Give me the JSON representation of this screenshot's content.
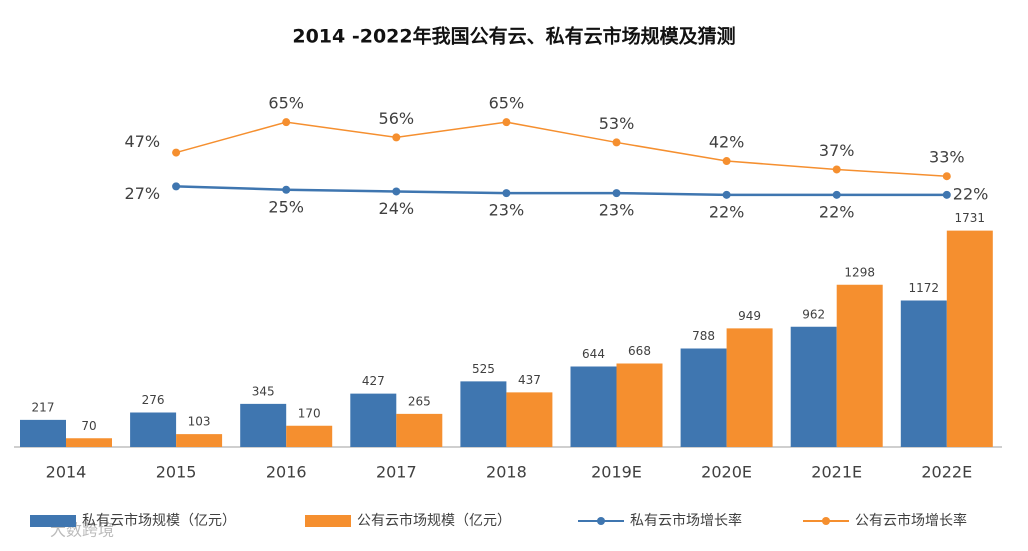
{
  "chart_data": {
    "type": "bar-line",
    "title": "2014 -2022年我国公有云、私有云市场规模及猜测",
    "categories": [
      "2014",
      "2015",
      "2016",
      "2017",
      "2018",
      "2019E",
      "2020E",
      "2021E",
      "2022E"
    ],
    "series": [
      {
        "name": "私有云市场规模（亿元）",
        "type": "bar",
        "color": "#3f76b0",
        "values": [
          217,
          276,
          345,
          427,
          525,
          644,
          788,
          962,
          1172
        ]
      },
      {
        "name": "公有云市场规模（亿元）",
        "type": "bar",
        "color": "#f58f2f",
        "values": [
          70,
          103,
          170,
          265,
          437,
          668,
          949,
          1298,
          1731
        ]
      },
      {
        "name": "私有云市场增长率",
        "type": "line",
        "axis": "y2",
        "color": "#3f76b0",
        "values": [
          null,
          27,
          25,
          24,
          23,
          23,
          22,
          22,
          22
        ],
        "value_labels": [
          null,
          "27%",
          "25%",
          "24%",
          "23%",
          "23%",
          "22%",
          "22%",
          "22%"
        ]
      },
      {
        "name": "公有云市场增长率",
        "type": "line",
        "axis": "y2",
        "color": "#f58f2f",
        "values": [
          null,
          47,
          65,
          56,
          65,
          53,
          42,
          37,
          33
        ],
        "value_labels": [
          null,
          "47%",
          "65%",
          "56%",
          "65%",
          "53%",
          "42%",
          "37%",
          "33%"
        ]
      }
    ],
    "ylim": [
      0,
      1800
    ],
    "y2lim": [
      0,
      100
    ],
    "watermark": "大数跨境"
  }
}
